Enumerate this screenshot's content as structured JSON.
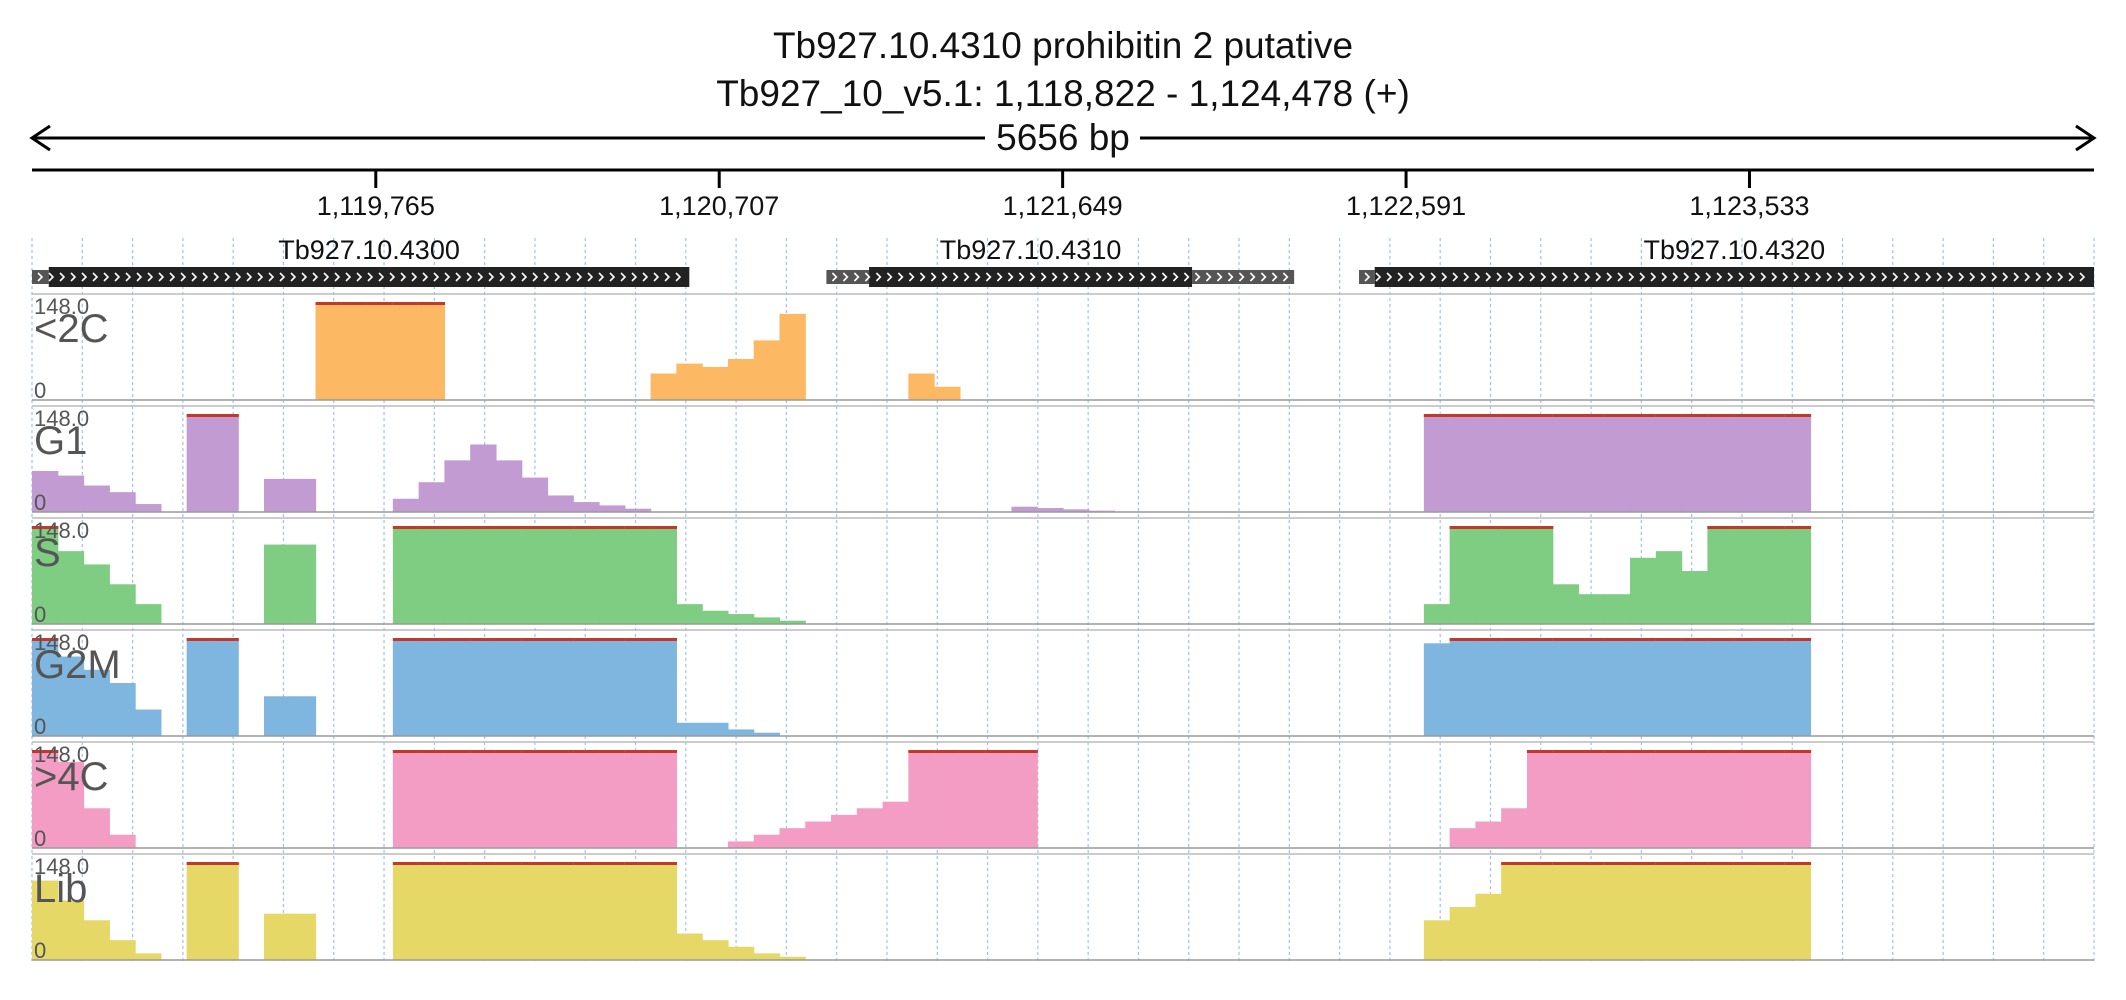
{
  "header": {
    "title_line1": "Tb927.10.4310  prohibitin 2  putative",
    "title_line2": "Tb927_10_v5.1: 1,118,822 - 1,124,478 (+)",
    "span_label": "5656 bp"
  },
  "chart_data": {
    "type": "area",
    "x_range": [
      1118822,
      1124478
    ],
    "y_range": [
      0,
      148.0
    ],
    "ruler_ticks": [
      {
        "pos": 1119765,
        "label": "1,119,765"
      },
      {
        "pos": 1120707,
        "label": "1,120,707"
      },
      {
        "pos": 1121649,
        "label": "1,121,649"
      },
      {
        "pos": 1122591,
        "label": "1,122,591"
      },
      {
        "pos": 1123533,
        "label": "1,123,533"
      }
    ],
    "genes": [
      {
        "name": "Tb927.10.4300",
        "start": 1118822,
        "utr5_end": 1118868,
        "cds_start": 1118868,
        "cds_end": 1120625,
        "utr3_end": 1120625
      },
      {
        "name": "Tb927.10.4310",
        "start": 1121001,
        "utr5_end": 1121118,
        "cds_start": 1121118,
        "cds_end": 1122004,
        "utr3_end": 1122284
      },
      {
        "name": "Tb927.10.4320",
        "start": 1122462,
        "utr5_end": 1122505,
        "cds_start": 1122505,
        "cds_end": 1124478,
        "utr3_end": 1124478
      }
    ],
    "bins_per_series": 80,
    "series": [
      {
        "name": "<2C",
        "color": "#fdb863",
        "values": [
          0,
          0,
          0,
          0,
          0,
          0,
          0,
          0,
          0,
          0,
          0,
          148,
          148,
          148,
          148,
          148,
          0,
          0,
          0,
          0,
          0,
          0,
          0,
          0,
          40,
          55,
          50,
          62,
          90,
          130,
          0,
          0,
          0,
          0,
          40,
          20,
          0,
          0,
          0,
          0,
          0,
          0,
          0,
          0,
          0,
          0,
          0,
          0,
          0,
          0,
          0,
          0,
          0,
          0,
          0,
          0,
          0,
          0,
          0,
          0,
          0,
          0,
          0,
          0,
          0,
          0,
          0,
          0,
          0,
          0,
          0,
          0,
          0,
          0,
          0,
          0,
          0,
          0,
          0,
          0
        ]
      },
      {
        "name": "G1",
        "color": "#c39bd3",
        "values": [
          62,
          55,
          40,
          30,
          12,
          0,
          148,
          148,
          0,
          50,
          50,
          0,
          0,
          0,
          20,
          45,
          78,
          102,
          78,
          52,
          25,
          15,
          10,
          5,
          0,
          0,
          0,
          0,
          0,
          0,
          0,
          0,
          0,
          0,
          0,
          0,
          0,
          0,
          8,
          6,
          4,
          2,
          0,
          0,
          0,
          0,
          0,
          0,
          0,
          0,
          0,
          0,
          0,
          0,
          148,
          148,
          148,
          148,
          148,
          148,
          148,
          148,
          148,
          148,
          148,
          148,
          148,
          148,
          148,
          0,
          0,
          0,
          0,
          0,
          0,
          0,
          0,
          0,
          0,
          0
        ]
      },
      {
        "name": "S",
        "color": "#7fcc83",
        "values": [
          148,
          110,
          90,
          60,
          30,
          0,
          0,
          0,
          0,
          120,
          120,
          0,
          0,
          0,
          148,
          148,
          148,
          148,
          148,
          148,
          148,
          148,
          148,
          148,
          148,
          30,
          20,
          15,
          10,
          5,
          0,
          0,
          0,
          0,
          0,
          0,
          0,
          0,
          0,
          0,
          0,
          0,
          0,
          0,
          0,
          0,
          0,
          0,
          0,
          0,
          0,
          0,
          0,
          0,
          30,
          148,
          148,
          148,
          148,
          60,
          45,
          45,
          100,
          110,
          80,
          148,
          148,
          148,
          148,
          0,
          0,
          0,
          0,
          0,
          0,
          0,
          0,
          0,
          0,
          0
        ]
      },
      {
        "name": "G2M",
        "color": "#7fb6e0",
        "values": [
          148,
          120,
          100,
          80,
          40,
          0,
          148,
          148,
          0,
          60,
          60,
          0,
          0,
          0,
          148,
          148,
          148,
          148,
          148,
          148,
          148,
          148,
          148,
          148,
          148,
          20,
          20,
          10,
          5,
          0,
          0,
          0,
          0,
          0,
          0,
          0,
          0,
          0,
          0,
          0,
          0,
          0,
          0,
          0,
          0,
          0,
          0,
          0,
          0,
          0,
          0,
          0,
          0,
          0,
          140,
          148,
          148,
          148,
          148,
          148,
          148,
          148,
          148,
          148,
          148,
          148,
          148,
          148,
          148,
          0,
          0,
          0,
          0,
          0,
          0,
          0,
          0,
          0,
          0,
          0
        ]
      },
      {
        "name": ">4C",
        "color": "#f49dc4",
        "values": [
          148,
          130,
          60,
          20,
          0,
          0,
          0,
          0,
          0,
          0,
          0,
          0,
          0,
          0,
          148,
          148,
          148,
          148,
          148,
          148,
          148,
          148,
          148,
          148,
          148,
          0,
          0,
          10,
          20,
          30,
          40,
          50,
          60,
          70,
          148,
          148,
          148,
          148,
          148,
          0,
          0,
          0,
          0,
          0,
          0,
          0,
          0,
          0,
          0,
          0,
          0,
          0,
          0,
          0,
          0,
          30,
          40,
          60,
          148,
          148,
          148,
          148,
          148,
          148,
          148,
          148,
          148,
          148,
          148,
          0,
          0,
          0,
          0,
          0,
          0,
          0,
          0,
          0,
          0,
          0
        ]
      },
      {
        "name": "Lib",
        "color": "#e6d867",
        "values": [
          120,
          90,
          60,
          30,
          10,
          0,
          148,
          148,
          0,
          70,
          70,
          0,
          0,
          0,
          148,
          148,
          148,
          148,
          148,
          148,
          148,
          148,
          148,
          148,
          148,
          40,
          30,
          20,
          10,
          5,
          0,
          0,
          0,
          0,
          0,
          0,
          0,
          0,
          0,
          0,
          0,
          0,
          0,
          0,
          0,
          0,
          0,
          0,
          0,
          0,
          0,
          0,
          0,
          0,
          60,
          80,
          100,
          148,
          148,
          148,
          148,
          148,
          148,
          148,
          148,
          148,
          148,
          148,
          148,
          0,
          0,
          0,
          0,
          0,
          0,
          0,
          0,
          0,
          0,
          0
        ]
      }
    ],
    "grid": true,
    "legend": "none"
  },
  "colors": {
    "axis": "#000000",
    "grid": "#9ec3ea",
    "gene_box": "#222222",
    "utr_box": "#555555",
    "saturation_marker": "#c0392b"
  }
}
